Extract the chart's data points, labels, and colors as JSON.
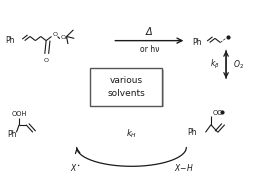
{
  "bg_color": "#ffffff",
  "line_color": "#1a1a1a",
  "text_color": "#1a1a1a",
  "arrow_color": "#1a1a1a",
  "fig_width": 2.74,
  "fig_height": 1.89,
  "dpi": 100,
  "top_arrow_label": "Δ",
  "top_arrow_sublabel": "or hν",
  "box_text": "various\nsolvents",
  "box_edge_color": "#888888",
  "box_shadow_color": "#aaaaaa"
}
